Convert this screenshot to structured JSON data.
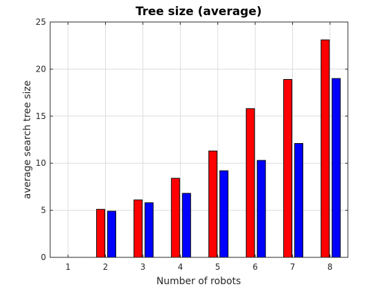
{
  "chart_data": {
    "type": "bar",
    "title": "Tree size (average)",
    "xlabel": "Number of robots",
    "ylabel": "average search tree size",
    "categories": [
      "1",
      "2",
      "3",
      "4",
      "5",
      "6",
      "7",
      "8"
    ],
    "series": [
      {
        "color": "#ff0000",
        "values": [
          0,
          5.1,
          6.1,
          8.4,
          11.3,
          15.8,
          18.9,
          23.1
        ]
      },
      {
        "color": "#0000ff",
        "values": [
          0,
          4.9,
          5.8,
          6.8,
          9.2,
          10.3,
          12.1,
          19.0
        ]
      }
    ],
    "ylim": [
      0,
      25
    ],
    "yticks": [
      0,
      5,
      10,
      15,
      20,
      25
    ],
    "grid": true
  }
}
